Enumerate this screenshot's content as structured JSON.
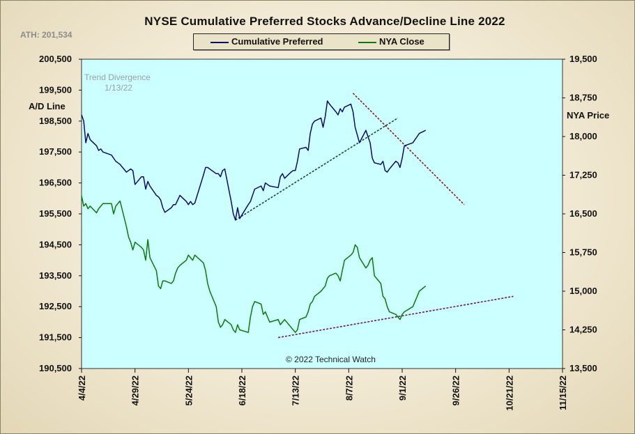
{
  "chart_data": {
    "type": "line",
    "title": "NYSE Cumulative  Preferred Stocks Advance/Decline Line 2022",
    "ath_label": "ATH: 201,534",
    "left_axis": {
      "label": "A/D Line",
      "ticks": [
        "200,500",
        "199,500",
        "198,500",
        "197,500",
        "196,500",
        "195,500",
        "194,500",
        "193,500",
        "192,500",
        "191,500",
        "190,500"
      ],
      "ylim": [
        190500,
        200500
      ]
    },
    "right_axis": {
      "label": "NYA Price",
      "ticks": [
        "19,500",
        "18,750",
        "18,000",
        "17,250",
        "16,500",
        "15,750",
        "15,000",
        "14,250",
        "13,500"
      ],
      "ylim": [
        13500,
        19500
      ]
    },
    "x_ticks": [
      "4/4/22",
      "4/29/22",
      "5/24/22",
      "6/18/22",
      "7/13/22",
      "8/7/22",
      "9/1/22",
      "9/26/22",
      "10/21/22",
      "11/15/22"
    ],
    "x_start": "2022-04-04",
    "x_end": "2022-11-15",
    "legend": [
      {
        "name": "Cumulative Preferred",
        "color": "#0a0a6e"
      },
      {
        "name": "NYA Close",
        "color": "#0a7a0a"
      }
    ],
    "background": "#ccffff",
    "annotations": {
      "divergence": [
        "Trend  Divergence",
        "1/13/22"
      ],
      "copyright": "© 2022 Technical Watch"
    },
    "series": [
      {
        "name": "Cumulative Preferred",
        "axis": "left",
        "color": "#0a0a6e",
        "x": [
          "2022-04-04",
          "2022-04-05",
          "2022-04-06",
          "2022-04-07",
          "2022-04-08",
          "2022-04-11",
          "2022-04-12",
          "2022-04-13",
          "2022-04-14",
          "2022-04-18",
          "2022-04-19",
          "2022-04-20",
          "2022-04-21",
          "2022-04-22",
          "2022-04-25",
          "2022-04-26",
          "2022-04-27",
          "2022-04-28",
          "2022-04-29",
          "2022-05-02",
          "2022-05-03",
          "2022-05-04",
          "2022-05-05",
          "2022-05-06",
          "2022-05-09",
          "2022-05-10",
          "2022-05-11",
          "2022-05-12",
          "2022-05-13",
          "2022-05-16",
          "2022-05-17",
          "2022-05-18",
          "2022-05-19",
          "2022-05-20",
          "2022-05-23",
          "2022-05-24",
          "2022-05-25",
          "2022-05-26",
          "2022-05-27",
          "2022-05-31",
          "2022-06-01",
          "2022-06-02",
          "2022-06-03",
          "2022-06-06",
          "2022-06-07",
          "2022-06-08",
          "2022-06-09",
          "2022-06-10",
          "2022-06-13",
          "2022-06-14",
          "2022-06-15",
          "2022-06-16",
          "2022-06-17",
          "2022-06-21",
          "2022-06-22",
          "2022-06-23",
          "2022-06-24",
          "2022-06-27",
          "2022-06-28",
          "2022-06-29",
          "2022-06-30",
          "2022-07-01",
          "2022-07-05",
          "2022-07-06",
          "2022-07-07",
          "2022-07-08",
          "2022-07-11",
          "2022-07-12",
          "2022-07-13",
          "2022-07-14",
          "2022-07-15",
          "2022-07-18",
          "2022-07-19",
          "2022-07-20",
          "2022-07-21",
          "2022-07-22",
          "2022-07-25",
          "2022-07-26",
          "2022-07-27",
          "2022-07-28",
          "2022-07-29",
          "2022-08-01",
          "2022-08-02",
          "2022-08-03",
          "2022-08-04",
          "2022-08-05",
          "2022-08-08",
          "2022-08-09",
          "2022-08-10",
          "2022-08-11",
          "2022-08-12",
          "2022-08-15",
          "2022-08-16",
          "2022-08-17",
          "2022-08-18",
          "2022-08-19",
          "2022-08-22",
          "2022-08-23",
          "2022-08-24",
          "2022-08-25",
          "2022-08-26",
          "2022-08-29",
          "2022-08-30",
          "2022-08-31",
          "2022-09-01",
          "2022-09-02",
          "2022-09-06",
          "2022-09-07",
          "2022-09-08",
          "2022-09-09",
          "2022-09-12"
        ],
        "values": [
          198700,
          198500,
          197800,
          198100,
          197900,
          197700,
          197550,
          197600,
          197500,
          197400,
          197300,
          197200,
          197150,
          197100,
          196850,
          196900,
          196950,
          196900,
          196450,
          196700,
          196700,
          196300,
          196550,
          196400,
          196100,
          196050,
          195950,
          195700,
          195550,
          195700,
          195800,
          195800,
          195950,
          196100,
          195900,
          195800,
          195900,
          195800,
          195850,
          196750,
          197000,
          197000,
          196950,
          196800,
          196800,
          196700,
          196900,
          196950,
          195900,
          195500,
          195300,
          195700,
          195350,
          195800,
          195900,
          196100,
          196300,
          196400,
          196250,
          196500,
          196450,
          196400,
          196350,
          196700,
          196800,
          196650,
          196850,
          196900,
          196900,
          197200,
          197600,
          197650,
          197550,
          198100,
          198400,
          198500,
          198600,
          198300,
          198650,
          199150,
          199050,
          198800,
          198700,
          198900,
          198800,
          198950,
          199050,
          198800,
          198300,
          198050,
          197800,
          198200,
          198000,
          197800,
          197300,
          197150,
          197100,
          197200,
          196900,
          196850,
          196950,
          197200,
          197150,
          197000,
          197300,
          197700,
          197800,
          197900,
          198000,
          198100,
          198200
        ]
      },
      {
        "name": "NYA Close",
        "axis": "right",
        "color": "#0a7a0a",
        "x": [
          "2022-04-04",
          "2022-04-05",
          "2022-04-06",
          "2022-04-07",
          "2022-04-08",
          "2022-04-11",
          "2022-04-12",
          "2022-04-13",
          "2022-04-14",
          "2022-04-18",
          "2022-04-19",
          "2022-04-20",
          "2022-04-21",
          "2022-04-22",
          "2022-04-25",
          "2022-04-26",
          "2022-04-27",
          "2022-04-28",
          "2022-04-29",
          "2022-05-02",
          "2022-05-03",
          "2022-05-04",
          "2022-05-05",
          "2022-05-06",
          "2022-05-09",
          "2022-05-10",
          "2022-05-11",
          "2022-05-12",
          "2022-05-13",
          "2022-05-16",
          "2022-05-17",
          "2022-05-18",
          "2022-05-19",
          "2022-05-20",
          "2022-05-23",
          "2022-05-24",
          "2022-05-25",
          "2022-05-26",
          "2022-05-27",
          "2022-05-31",
          "2022-06-01",
          "2022-06-02",
          "2022-06-03",
          "2022-06-06",
          "2022-06-07",
          "2022-06-08",
          "2022-06-09",
          "2022-06-10",
          "2022-06-13",
          "2022-06-14",
          "2022-06-15",
          "2022-06-16",
          "2022-06-17",
          "2022-06-21",
          "2022-06-22",
          "2022-06-23",
          "2022-06-24",
          "2022-06-27",
          "2022-06-28",
          "2022-06-29",
          "2022-06-30",
          "2022-07-01",
          "2022-07-05",
          "2022-07-06",
          "2022-07-07",
          "2022-07-08",
          "2022-07-11",
          "2022-07-12",
          "2022-07-13",
          "2022-07-14",
          "2022-07-15",
          "2022-07-18",
          "2022-07-19",
          "2022-07-20",
          "2022-07-21",
          "2022-07-22",
          "2022-07-25",
          "2022-07-26",
          "2022-07-27",
          "2022-07-28",
          "2022-07-29",
          "2022-08-01",
          "2022-08-02",
          "2022-08-03",
          "2022-08-04",
          "2022-08-05",
          "2022-08-08",
          "2022-08-09",
          "2022-08-10",
          "2022-08-11",
          "2022-08-12",
          "2022-08-15",
          "2022-08-16",
          "2022-08-17",
          "2022-08-18",
          "2022-08-19",
          "2022-08-22",
          "2022-08-23",
          "2022-08-24",
          "2022-08-25",
          "2022-08-26",
          "2022-08-29",
          "2022-08-30",
          "2022-08-31",
          "2022-09-01",
          "2022-09-02",
          "2022-09-06",
          "2022-09-07",
          "2022-09-08",
          "2022-09-09",
          "2022-09-12"
        ],
        "values": [
          16850,
          16650,
          16700,
          16600,
          16650,
          16520,
          16600,
          16650,
          16700,
          16700,
          16500,
          16650,
          16700,
          16750,
          16250,
          16050,
          15950,
          15800,
          15950,
          15850,
          15800,
          15600,
          16000,
          15650,
          15400,
          15100,
          15050,
          15200,
          15200,
          15150,
          15200,
          15350,
          15450,
          15500,
          15600,
          15700,
          15650,
          15600,
          15700,
          15550,
          15400,
          15150,
          15000,
          14700,
          14400,
          14300,
          14350,
          14450,
          14350,
          14250,
          14200,
          14350,
          14250,
          14200,
          14500,
          14700,
          14800,
          14750,
          14550,
          14600,
          14500,
          14400,
          14450,
          14350,
          14400,
          14450,
          14300,
          14250,
          14200,
          14250,
          14450,
          14500,
          14600,
          14750,
          14800,
          14900,
          15000,
          15050,
          15100,
          15250,
          15300,
          15350,
          15300,
          15200,
          15400,
          15600,
          15700,
          15750,
          15900,
          15850,
          15650,
          15450,
          15500,
          15600,
          15650,
          15300,
          15150,
          14900,
          14850,
          14700,
          14600,
          14550,
          14500,
          14450,
          14550,
          14600,
          14700,
          14800,
          14900,
          15000,
          15100
        ]
      }
    ],
    "trendlines": [
      {
        "axis": "left",
        "color": "#1a4a2a",
        "x": [
          "2022-06-15",
          "2022-08-30"
        ],
        "values": [
          195300,
          198600
        ]
      },
      {
        "axis": "left",
        "color": "#8a1a1a",
        "x": [
          "2022-08-09",
          "2022-09-30"
        ],
        "values": [
          199400,
          195800
        ]
      },
      {
        "axis": "right",
        "color": "#6a1a5a",
        "x": [
          "2022-07-05",
          "2022-10-23"
        ],
        "values": [
          14100,
          14900
        ]
      }
    ]
  }
}
